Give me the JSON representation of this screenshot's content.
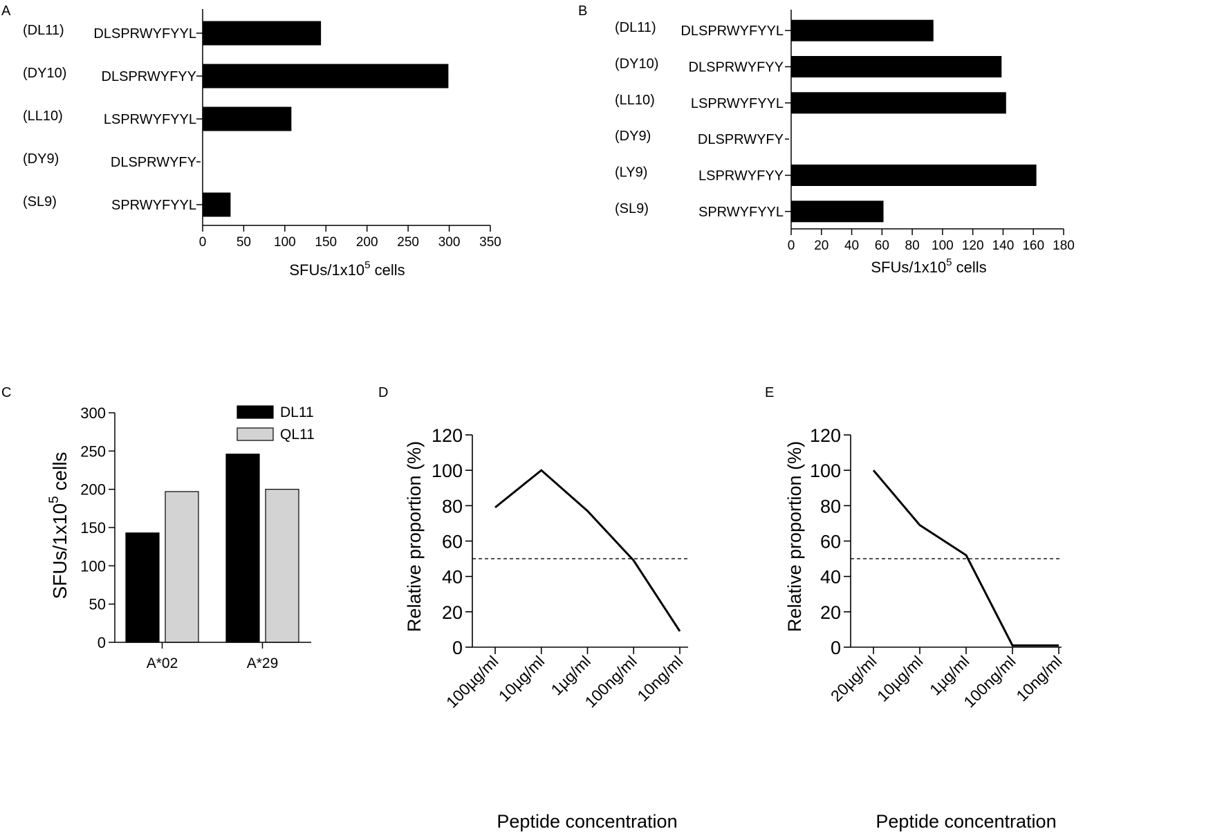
{
  "colors": {
    "dark": "#000000",
    "light": "#d3d3d3",
    "background": "#ffffff"
  },
  "chart_data": [
    {
      "panel": "A",
      "type": "bar",
      "orientation": "horizontal",
      "ids": [
        "(DL11)",
        "(DY10)",
        "(LL10)",
        "(DY9)",
        "(SL9)"
      ],
      "categories": [
        "DLSPRWYFYYL",
        "DLSPRWYFYY",
        "LSPRWYFYYL",
        "DLSPRWYFY",
        "SPRWYFYYL"
      ],
      "values": [
        144,
        299,
        108,
        0,
        34
      ],
      "xlim": [
        0,
        350
      ],
      "ticks": [
        0,
        50,
        100,
        150,
        200,
        250,
        300,
        350
      ],
      "xlabel": "SFUs/1x10",
      "xlabel_sup": "5",
      "xlabel_end": " cells",
      "ylabel": ""
    },
    {
      "panel": "B",
      "type": "bar",
      "orientation": "horizontal",
      "ids": [
        "(DL11)",
        "(DY10)",
        "(LL10)",
        "(DY9)",
        "(LY9)",
        "(SL9)"
      ],
      "categories": [
        "DLSPRWYFYYL",
        "DLSPRWYFYY",
        "LSPRWYFYYL",
        "DLSPRWYFY",
        "LSPRWYFYY",
        "SPRWYFYYL"
      ],
      "values": [
        94,
        139,
        142,
        0,
        162,
        61
      ],
      "xlim": [
        0,
        180
      ],
      "ticks": [
        0,
        20,
        40,
        60,
        80,
        100,
        120,
        140,
        160,
        180
      ],
      "xlabel": "SFUs/1x10",
      "xlabel_sup": "5",
      "xlabel_end": " cells",
      "ylabel": ""
    },
    {
      "panel": "C",
      "type": "bar",
      "orientation": "vertical",
      "categories": [
        "A*02",
        "A*29"
      ],
      "series": [
        {
          "name": "DL11",
          "values": [
            143,
            246
          ]
        },
        {
          "name": "QL11",
          "values": [
            197,
            200
          ]
        }
      ],
      "ylim": [
        0,
        300
      ],
      "ticks": [
        0,
        50,
        100,
        150,
        200,
        250,
        300
      ],
      "ylabel": "SFUs/1x10",
      "ylabel_sup": "5",
      "ylabel_end": " cells",
      "xlabel": ""
    },
    {
      "panel": "D",
      "type": "line",
      "categories": [
        "100µg/ml",
        "10µg/ml",
        "1µg/ml",
        "100ng/ml",
        "10ng/ml"
      ],
      "values": [
        79,
        100,
        77,
        49,
        9
      ],
      "reference_line": 50,
      "ylim": [
        0,
        120
      ],
      "ticks": [
        0,
        20,
        40,
        60,
        80,
        100,
        120
      ],
      "ylabel": "Relative proportion (%)",
      "xlabel": "Peptide concentration"
    },
    {
      "panel": "E",
      "type": "line",
      "categories": [
        "20µg/ml",
        "10µg/ml",
        "1µg/ml",
        "100ng/ml",
        "10ng/ml"
      ],
      "values": [
        100,
        69,
        52,
        1,
        1
      ],
      "reference_line": 50,
      "ylim": [
        0,
        120
      ],
      "ticks": [
        0,
        20,
        40,
        60,
        80,
        100,
        120
      ],
      "ylabel": "Relative proportion (%)",
      "xlabel": "Peptide concentration"
    }
  ]
}
